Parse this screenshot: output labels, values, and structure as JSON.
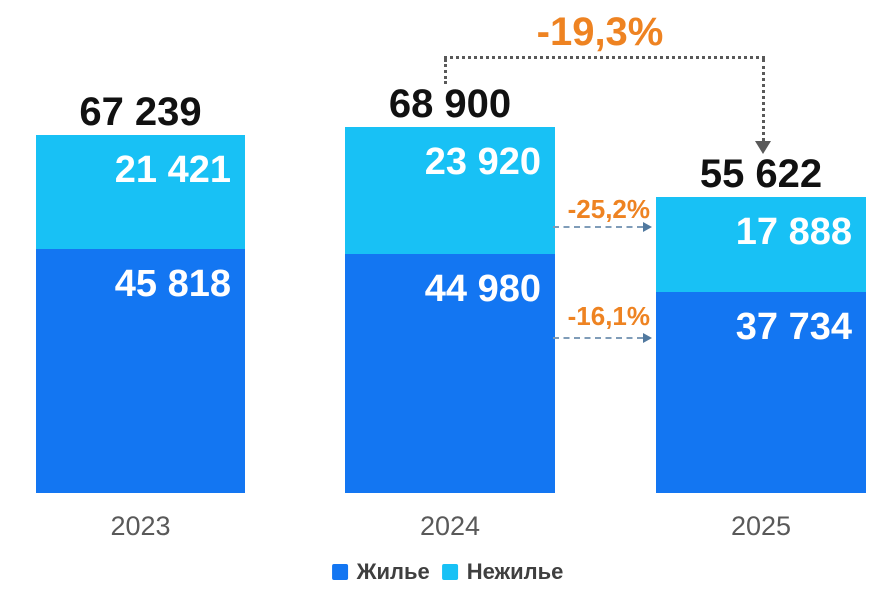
{
  "chart_data": {
    "type": "bar",
    "subtype": "stacked",
    "title": "",
    "categories": [
      "2023",
      "2024",
      "2025"
    ],
    "series": [
      {
        "name": "Жилье",
        "color": "#1376F2",
        "values": [
          45818,
          44980,
          37734
        ],
        "labels": [
          "45 818",
          "44 980",
          "37 734"
        ]
      },
      {
        "name": "Нежилье",
        "color": "#18C1F5",
        "values": [
          21421,
          23920,
          17888
        ],
        "labels": [
          "21 421",
          "23 920",
          "17 888"
        ]
      }
    ],
    "totals": {
      "values": [
        67239,
        68900,
        55622
      ],
      "labels": [
        "67 239",
        "68 900",
        "55 622"
      ]
    },
    "annotations": {
      "total_change": {
        "text": "-19,3%",
        "color": "#EE8322",
        "arrow_color": "#595959",
        "arrow_style": "dotted",
        "from_category": "2024",
        "to_category": "2025"
      },
      "nonresidential_change": {
        "text": "-25,2%",
        "color": "#EE8322",
        "arrow_color": "#7F9CB8",
        "arrow_style": "dashed",
        "from_category": "2024",
        "to_category": "2025"
      },
      "residential_change": {
        "text": "-16,1%",
        "color": "#EE8322",
        "arrow_color": "#7F9CB8",
        "arrow_style": "dashed",
        "from_category": "2024",
        "to_category": "2025"
      }
    },
    "legend": {
      "position": "bottom",
      "items": [
        "Жилье",
        "Нежилье"
      ]
    },
    "axis": {
      "x_labels": [
        "2023",
        "2024",
        "2025"
      ],
      "y_axis_visible": false,
      "grid": false
    },
    "value_label_color": "#FFFFFF",
    "total_label_color": "#111111",
    "category_label_color": "#595959",
    "pixels_per_unit": 0.005324
  }
}
